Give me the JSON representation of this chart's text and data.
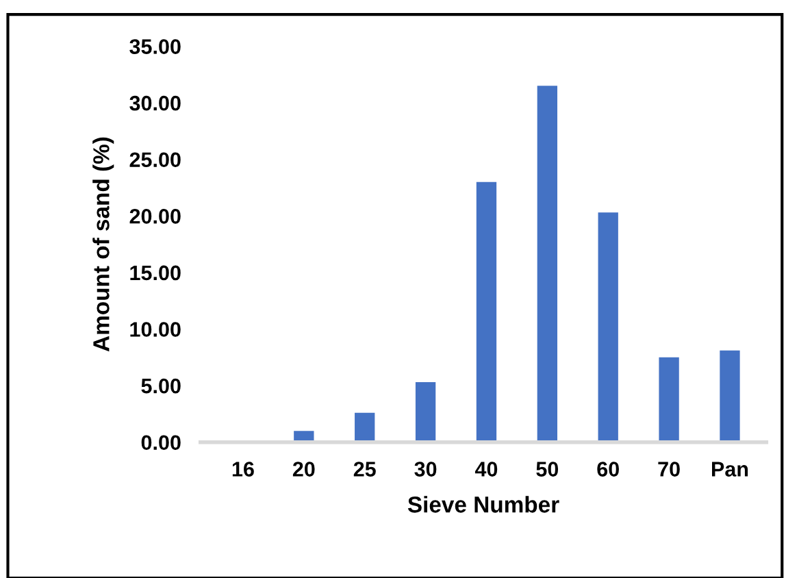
{
  "chart_data": {
    "type": "bar",
    "xlabel": "Sieve Number",
    "ylabel": "Amount of sand (%)",
    "categories": [
      "16",
      "20",
      "25",
      "30",
      "40",
      "50",
      "60",
      "70",
      "Pan"
    ],
    "values": [
      0,
      1.0,
      2.6,
      5.3,
      23.0,
      31.5,
      20.3,
      7.5,
      8.1
    ],
    "color": "#4472c4",
    "ylim": [
      0,
      35
    ],
    "yticks": [
      {
        "value": 0,
        "label": "0.00"
      },
      {
        "value": 5,
        "label": "5.00"
      },
      {
        "value": 10,
        "label": "10.00"
      },
      {
        "value": 15,
        "label": "15.00"
      },
      {
        "value": 20,
        "label": "20.00"
      },
      {
        "value": 25,
        "label": "25.00"
      },
      {
        "value": 30,
        "label": "30.00"
      },
      {
        "value": 35,
        "label": "35.00"
      }
    ],
    "grid": false,
    "legend": false
  }
}
